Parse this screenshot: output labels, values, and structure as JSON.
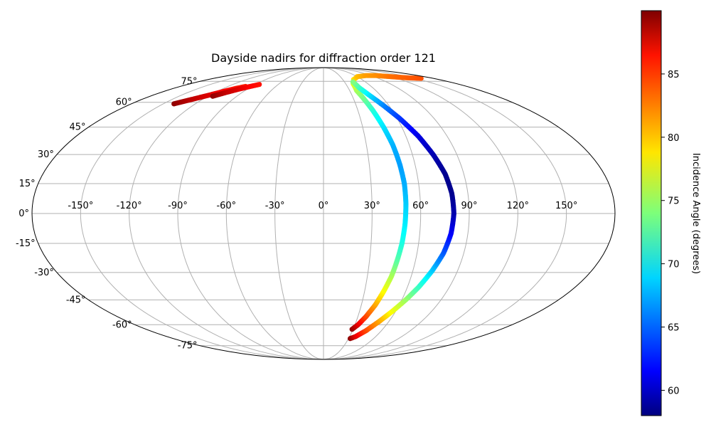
{
  "chart_data": {
    "type": "scatter",
    "projection": "mollweide",
    "title": "Dayside nadirs for diffraction order 121",
    "grid": true,
    "lon_ticks": [
      -150,
      -120,
      -90,
      -60,
      -30,
      0,
      30,
      60,
      90,
      120,
      150
    ],
    "lon_tick_labels": [
      "-150°",
      "-120°",
      "-90°",
      "-60°",
      "-30°",
      "0°",
      "30°",
      "60°",
      "90°",
      "120°",
      "150°"
    ],
    "lat_ticks": [
      -75,
      -60,
      -45,
      -30,
      -15,
      0,
      15,
      30,
      45,
      60,
      75
    ],
    "lat_tick_labels": [
      "-75°",
      "-60°",
      "-45°",
      "-30°",
      "-15°",
      "0°",
      "15°",
      "30°",
      "45°",
      "60°",
      "75°"
    ],
    "colorbar": {
      "label": "Incidence Angle (degrees)",
      "colormap": "jet",
      "range": [
        58,
        90
      ],
      "ticks": [
        60,
        65,
        70,
        75,
        80,
        85
      ],
      "tick_labels": [
        "60",
        "65",
        "70",
        "75",
        "80",
        "85"
      ],
      "placement": "right"
    },
    "series": [
      {
        "points": [
          {
            "lon": 29,
            "lat": -63,
            "inc": 89.5
          },
          {
            "lon": 33,
            "lat": -60,
            "inc": 87
          },
          {
            "lon": 37,
            "lat": -55,
            "inc": 84
          },
          {
            "lon": 41,
            "lat": -48,
            "inc": 81
          },
          {
            "lon": 44,
            "lat": -40,
            "inc": 78
          },
          {
            "lon": 46.5,
            "lat": -32,
            "inc": 75.5
          },
          {
            "lon": 48,
            "lat": -24,
            "inc": 73
          },
          {
            "lon": 49.5,
            "lat": -15,
            "inc": 71
          },
          {
            "lon": 50.5,
            "lat": -5,
            "inc": 69.5
          },
          {
            "lon": 51,
            "lat": 5,
            "inc": 68.5
          },
          {
            "lon": 51,
            "lat": 15,
            "inc": 67.5
          },
          {
            "lon": 50,
            "lat": 25,
            "inc": 67
          },
          {
            "lon": 48.5,
            "lat": 35,
            "inc": 67.5
          },
          {
            "lon": 46,
            "lat": 45,
            "inc": 69
          },
          {
            "lon": 43,
            "lat": 55,
            "inc": 71
          },
          {
            "lon": 40,
            "lat": 63,
            "inc": 73.5
          },
          {
            "lon": 38,
            "lat": 68,
            "inc": 75
          },
          {
            "lon": 40,
            "lat": 73,
            "inc": 77
          },
          {
            "lon": 47,
            "lat": 76.5,
            "inc": 79
          },
          {
            "lon": 60,
            "lat": 79,
            "inc": 80
          },
          {
            "lon": 80,
            "lat": 80,
            "inc": 81
          },
          {
            "lon": 100,
            "lat": 80,
            "inc": 81.5
          },
          {
            "lon": 120,
            "lat": 79,
            "inc": 82.5
          },
          {
            "lon": 140,
            "lat": 78,
            "inc": 83
          },
          {
            "lon": 160,
            "lat": 77.5,
            "inc": 83.5
          }
        ]
      },
      {
        "points": [
          {
            "lon": 32,
            "lat": -69.5,
            "inc": 89.5
          },
          {
            "lon": 37,
            "lat": -68,
            "inc": 87
          },
          {
            "lon": 44,
            "lat": -64,
            "inc": 84
          },
          {
            "lon": 51,
            "lat": -58,
            "inc": 81
          },
          {
            "lon": 57,
            "lat": -52,
            "inc": 78
          },
          {
            "lon": 63,
            "lat": -45,
            "inc": 75
          },
          {
            "lon": 68,
            "lat": -38,
            "inc": 72
          },
          {
            "lon": 73,
            "lat": -29,
            "inc": 68.5
          },
          {
            "lon": 77,
            "lat": -20,
            "inc": 65
          },
          {
            "lon": 79.5,
            "lat": -10,
            "inc": 62
          },
          {
            "lon": 80.5,
            "lat": 0,
            "inc": 59.5
          },
          {
            "lon": 80,
            "lat": 10,
            "inc": 58.5
          },
          {
            "lon": 78,
            "lat": 20,
            "inc": 58.5
          },
          {
            "lon": 74,
            "lat": 30,
            "inc": 59.5
          },
          {
            "lon": 69,
            "lat": 40,
            "inc": 61
          },
          {
            "lon": 62,
            "lat": 50,
            "inc": 63.5
          },
          {
            "lon": 55,
            "lat": 58,
            "inc": 66
          },
          {
            "lon": 48,
            "lat": 65,
            "inc": 69
          },
          {
            "lon": 43.5,
            "lat": 70,
            "inc": 71.5
          },
          {
            "lon": 42,
            "lat": 74.5,
            "inc": 74
          }
        ]
      },
      {
        "points": [
          {
            "lon": -140,
            "lat": 59,
            "inc": 89.5
          },
          {
            "lon": -130,
            "lat": 62,
            "inc": 88
          },
          {
            "lon": -120,
            "lat": 65,
            "inc": 87
          },
          {
            "lon": -112,
            "lat": 67.5,
            "inc": 86
          },
          {
            "lon": -105,
            "lat": 69.5,
            "inc": 85.5
          },
          {
            "lon": -98,
            "lat": 71,
            "inc": 85
          }
        ]
      },
      {
        "points": [
          {
            "lon": -115,
            "lat": 64,
            "inc": 89.5
          },
          {
            "lon": -108,
            "lat": 66.5,
            "inc": 88
          },
          {
            "lon": -100,
            "lat": 69,
            "inc": 87
          },
          {
            "lon": -92,
            "lat": 71,
            "inc": 86
          },
          {
            "lon": -85,
            "lat": 72.5,
            "inc": 85.5
          }
        ]
      }
    ]
  }
}
